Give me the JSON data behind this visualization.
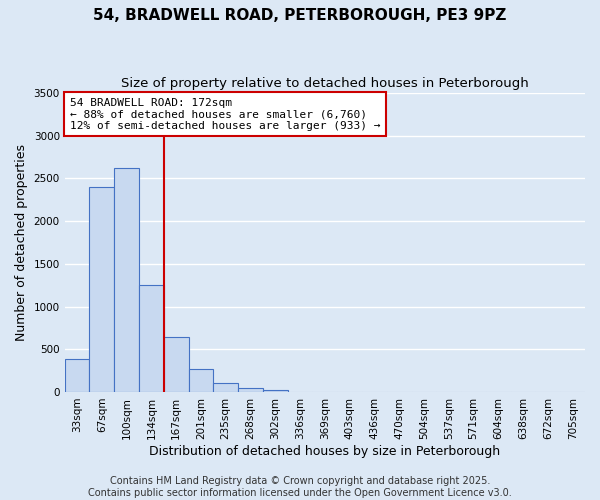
{
  "title": "54, BRADWELL ROAD, PETERBOROUGH, PE3 9PZ",
  "subtitle": "Size of property relative to detached houses in Peterborough",
  "bar_categories": [
    "33sqm",
    "67sqm",
    "100sqm",
    "134sqm",
    "167sqm",
    "201sqm",
    "235sqm",
    "268sqm",
    "302sqm",
    "336sqm",
    "369sqm",
    "403sqm",
    "436sqm",
    "470sqm",
    "504sqm",
    "537sqm",
    "571sqm",
    "604sqm",
    "638sqm",
    "672sqm",
    "705sqm"
  ],
  "bar_values": [
    390,
    2400,
    2620,
    1250,
    640,
    270,
    100,
    50,
    20,
    5,
    2,
    0,
    0,
    0,
    0,
    0,
    0,
    0,
    0,
    0,
    0
  ],
  "bar_color": "#c8d9f0",
  "bar_edge_color": "#4472c4",
  "ylim": [
    0,
    3500
  ],
  "yticks": [
    0,
    500,
    1000,
    1500,
    2000,
    2500,
    3000,
    3500
  ],
  "xlabel": "Distribution of detached houses by size in Peterborough",
  "ylabel": "Number of detached properties",
  "vline_x": 3.5,
  "vline_color": "#cc0000",
  "annotation_title": "54 BRADWELL ROAD: 172sqm",
  "annotation_line1": "← 88% of detached houses are smaller (6,760)",
  "annotation_line2": "12% of semi-detached houses are larger (933) →",
  "annotation_box_color": "#ffffff",
  "annotation_box_edge": "#cc0000",
  "footer1": "Contains HM Land Registry data © Crown copyright and database right 2025.",
  "footer2": "Contains public sector information licensed under the Open Government Licence v3.0.",
  "background_color": "#dce8f5",
  "plot_background": "#dce8f5",
  "grid_color": "#ffffff",
  "title_fontsize": 11,
  "subtitle_fontsize": 9.5,
  "axis_label_fontsize": 9,
  "tick_fontsize": 7.5,
  "footer_fontsize": 7
}
